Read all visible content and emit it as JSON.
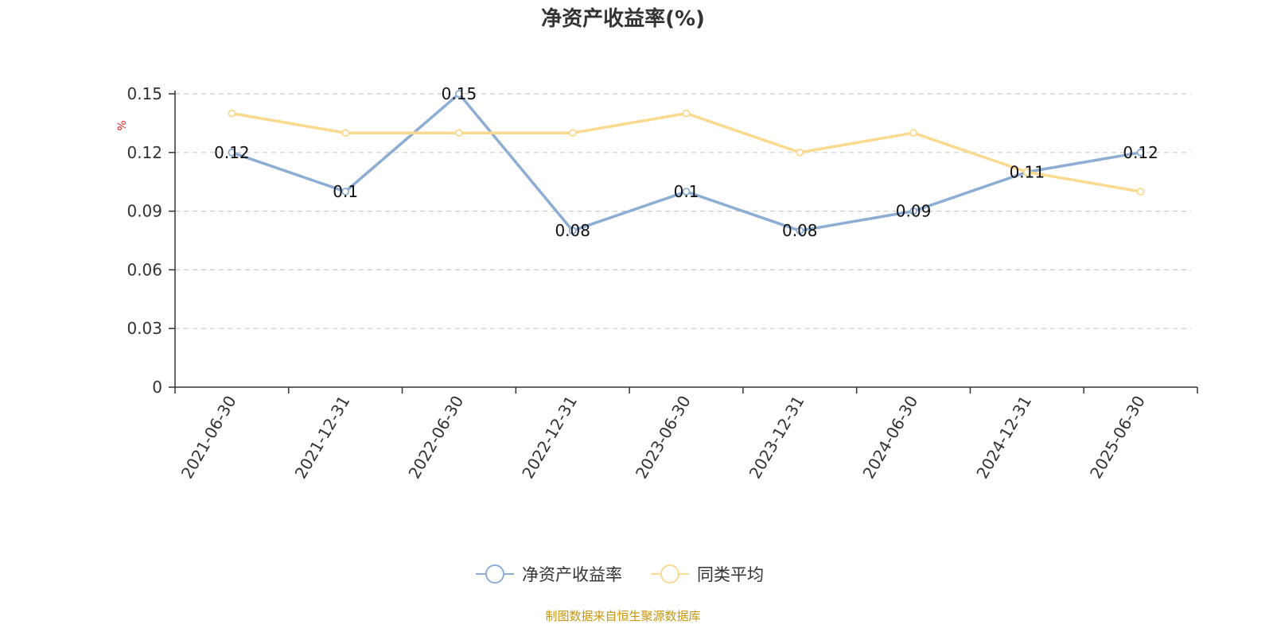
{
  "chart_data": {
    "type": "line",
    "title": "净资产收益率(%)",
    "ylabel": "%",
    "xlabel": "",
    "categories": [
      "2021-06-30",
      "2021-12-31",
      "2022-06-30",
      "2022-12-31",
      "2023-06-30",
      "2023-12-31",
      "2024-06-30",
      "2024-12-31",
      "2025-06-30"
    ],
    "ylim": [
      0,
      0.15
    ],
    "yticks": [
      "0",
      "0.03",
      "0.06",
      "0.09",
      "0.12",
      "0.15"
    ],
    "grid": true,
    "legend_position": "bottom",
    "series": [
      {
        "name": "净资产收益率",
        "values": [
          0.12,
          0.1,
          0.15,
          0.08,
          0.1,
          0.08,
          0.09,
          0.11,
          0.12
        ],
        "labels": [
          "0.12",
          "0.1",
          "0.15",
          "0.08",
          "0.1",
          "0.08",
          "0.09",
          "0.11",
          "0.12"
        ],
        "color": "#8eadd5"
      },
      {
        "name": "同类平均",
        "values": [
          0.14,
          0.13,
          0.13,
          0.13,
          0.14,
          0.12,
          0.13,
          0.11,
          0.1
        ],
        "color": "#fbd98f"
      }
    ]
  },
  "source_text": "制图数据来自恒生聚源数据库",
  "colors": {
    "unit": "#e02020",
    "source": "#c8960a",
    "axis": "#333333",
    "grid": "#cccccc"
  }
}
